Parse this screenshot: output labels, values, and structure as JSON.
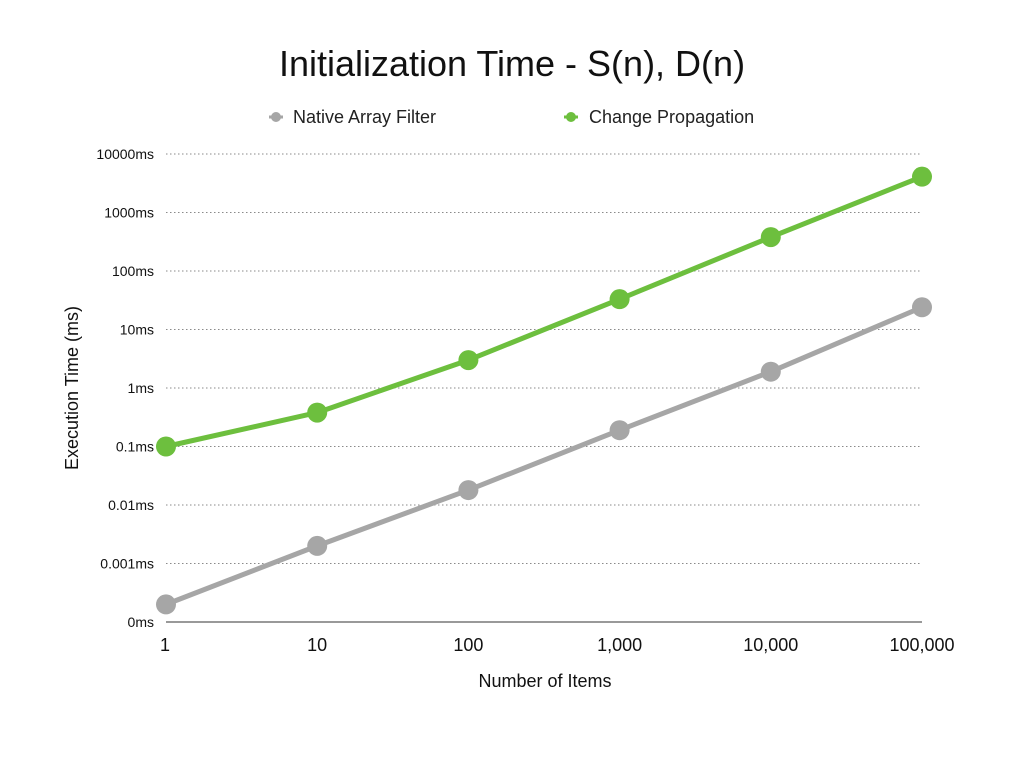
{
  "chart_data": {
    "type": "line",
    "title": "Initialization Time - S(n), D(n)",
    "xlabel": "Number of Items",
    "ylabel": "Execution Time (ms)",
    "x_scale": "log",
    "y_scale": "log",
    "x": [
      1,
      10,
      100,
      1000,
      10000,
      100000
    ],
    "x_tick_labels": [
      "1",
      "10",
      "100",
      "1,000",
      "10,000",
      "100,000"
    ],
    "y_ticks": [
      0.0001,
      0.001,
      0.01,
      0.1,
      1,
      10,
      100,
      1000,
      10000
    ],
    "y_tick_labels": [
      "0ms",
      "0.001ms",
      "0.01ms",
      "0.1ms",
      "1ms",
      "10ms",
      "100ms",
      "1000ms",
      "10000ms"
    ],
    "ylim": [
      0.0001,
      10000
    ],
    "grid": true,
    "legend_position": "top",
    "series": [
      {
        "name": "Native Array Filter",
        "color": "#a6a6a6",
        "values": [
          0.0002,
          0.002,
          0.018,
          0.19,
          1.9,
          24
        ]
      },
      {
        "name": "Change Propagation",
        "color": "#6dbf3e",
        "values": [
          0.1,
          0.38,
          3.0,
          33,
          380,
          4100
        ]
      }
    ]
  }
}
